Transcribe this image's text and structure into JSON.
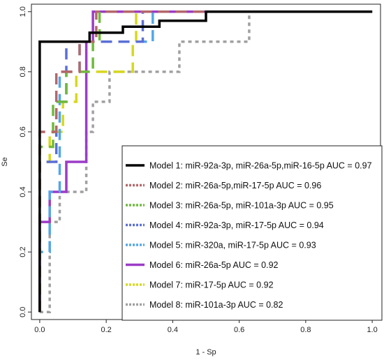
{
  "chart_data": {
    "type": "line",
    "title": "",
    "xlabel": "1 - Sp",
    "ylabel": "Se",
    "xlim": [
      -0.025,
      1.025
    ],
    "ylim": [
      -0.025,
      1.025
    ],
    "xticks": [
      0.0,
      0.2,
      0.4,
      0.6,
      0.8,
      1.0
    ],
    "yticks": [
      0.0,
      0.2,
      0.4,
      0.6,
      0.8,
      1.0
    ],
    "xtick_labels": [
      "0.0",
      "0.2",
      "0.4",
      "0.6",
      "0.8",
      "1.0"
    ],
    "ytick_labels": [
      "0.0",
      "0.2",
      "0.4",
      "0.6",
      "0.8",
      "1.0"
    ],
    "grid": false,
    "legend_position": "bottom-right",
    "series": [
      {
        "name": "Model 1: miR-92a-3p, miR-26a-5p,miR-16-5p AUC =  0.97",
        "color": "#000000",
        "dash": "solid",
        "points": [
          [
            0,
            0
          ],
          [
            0,
            0.9
          ],
          [
            0.083,
            0.9
          ],
          [
            0.083,
            0.9
          ],
          [
            0.15,
            0.9
          ],
          [
            0.15,
            0.93
          ],
          [
            0.25,
            0.93
          ],
          [
            0.25,
            0.95
          ],
          [
            0.36,
            0.95
          ],
          [
            0.36,
            0.97
          ],
          [
            0.5,
            0.97
          ],
          [
            0.5,
            1.0
          ],
          [
            1,
            1
          ]
        ]
      },
      {
        "name": "Model 2: miR-26a-5p,miR-17-5p AUC =  0.96",
        "color": "#b5676a",
        "dash": "dash",
        "points": [
          [
            0,
            0
          ],
          [
            0,
            0.6
          ],
          [
            0.05,
            0.6
          ],
          [
            0.05,
            0.8
          ],
          [
            0.12,
            0.8
          ],
          [
            0.12,
            0.9
          ],
          [
            0.17,
            0.9
          ],
          [
            0.17,
            1.0
          ],
          [
            1,
            1
          ]
        ]
      },
      {
        "name": "Model 3: miR-26a-5p, miR-101a-3p AUC =  0.95",
        "color": "#6fba3c",
        "dash": "dash",
        "points": [
          [
            0,
            0
          ],
          [
            0,
            0.55
          ],
          [
            0.04,
            0.55
          ],
          [
            0.04,
            0.7
          ],
          [
            0.08,
            0.7
          ],
          [
            0.08,
            0.8
          ],
          [
            0.16,
            0.8
          ],
          [
            0.16,
            0.9
          ],
          [
            0.18,
            0.9
          ],
          [
            0.18,
            1.0
          ],
          [
            1,
            1
          ]
        ]
      },
      {
        "name": "Model 4: miR-92a-3p, miR-17-5p AUC =  0.94",
        "color": "#5b6fd6",
        "dash": "dash",
        "points": [
          [
            0,
            0
          ],
          [
            0,
            0.5
          ],
          [
            0.05,
            0.5
          ],
          [
            0.05,
            0.7
          ],
          [
            0.08,
            0.7
          ],
          [
            0.08,
            0.9
          ],
          [
            0.31,
            0.9
          ],
          [
            0.31,
            1.0
          ],
          [
            1,
            1
          ]
        ]
      },
      {
        "name": "Model 5: miR-320a, miR-17-5p AUC =  0.93",
        "color": "#54a6e8",
        "dash": "dash",
        "points": [
          [
            0,
            0
          ],
          [
            0,
            0.2
          ],
          [
            0.03,
            0.2
          ],
          [
            0.03,
            0.4
          ],
          [
            0.06,
            0.4
          ],
          [
            0.06,
            0.8
          ],
          [
            0.12,
            0.8
          ],
          [
            0.12,
            0.9
          ],
          [
            0.34,
            0.9
          ],
          [
            0.34,
            1.0
          ],
          [
            1,
            1
          ]
        ]
      },
      {
        "name": "Model 6: miR-26a-5p AUC =  0.92",
        "color": "#9b3cc7",
        "dash": "solid",
        "points": [
          [
            0,
            0
          ],
          [
            0,
            0.3
          ],
          [
            0.03,
            0.3
          ],
          [
            0.03,
            0.4
          ],
          [
            0.08,
            0.4
          ],
          [
            0.08,
            0.5
          ],
          [
            0.14,
            0.5
          ],
          [
            0.14,
            0.9
          ],
          [
            0.16,
            0.9
          ],
          [
            0.16,
            1.0
          ],
          [
            1,
            1
          ]
        ]
      },
      {
        "name": "Model 7: miR-17-5p AUC =  0.92",
        "color": "#d6d81e",
        "dash": "dash",
        "points": [
          [
            0,
            0
          ],
          [
            0,
            0.5
          ],
          [
            0.03,
            0.5
          ],
          [
            0.03,
            0.6
          ],
          [
            0.07,
            0.6
          ],
          [
            0.07,
            0.7
          ],
          [
            0.11,
            0.7
          ],
          [
            0.11,
            0.8
          ],
          [
            0.28,
            0.8
          ],
          [
            0.28,
            0.9
          ],
          [
            0.29,
            0.9
          ],
          [
            0.29,
            1.0
          ],
          [
            1,
            1
          ]
        ]
      },
      {
        "name": "Model 8: miR-101a-3p AUC =  0.82",
        "color": "#a0a0a0",
        "dash": "dot",
        "points": [
          [
            0,
            0
          ],
          [
            0.03,
            0
          ],
          [
            0.03,
            0.3
          ],
          [
            0.06,
            0.3
          ],
          [
            0.06,
            0.4
          ],
          [
            0.14,
            0.4
          ],
          [
            0.14,
            0.6
          ],
          [
            0.16,
            0.6
          ],
          [
            0.16,
            0.7
          ],
          [
            0.21,
            0.7
          ],
          [
            0.21,
            0.8
          ],
          [
            0.42,
            0.8
          ],
          [
            0.42,
            0.9
          ],
          [
            0.63,
            0.9
          ],
          [
            0.63,
            1.0
          ],
          [
            1,
            1
          ]
        ]
      }
    ]
  }
}
